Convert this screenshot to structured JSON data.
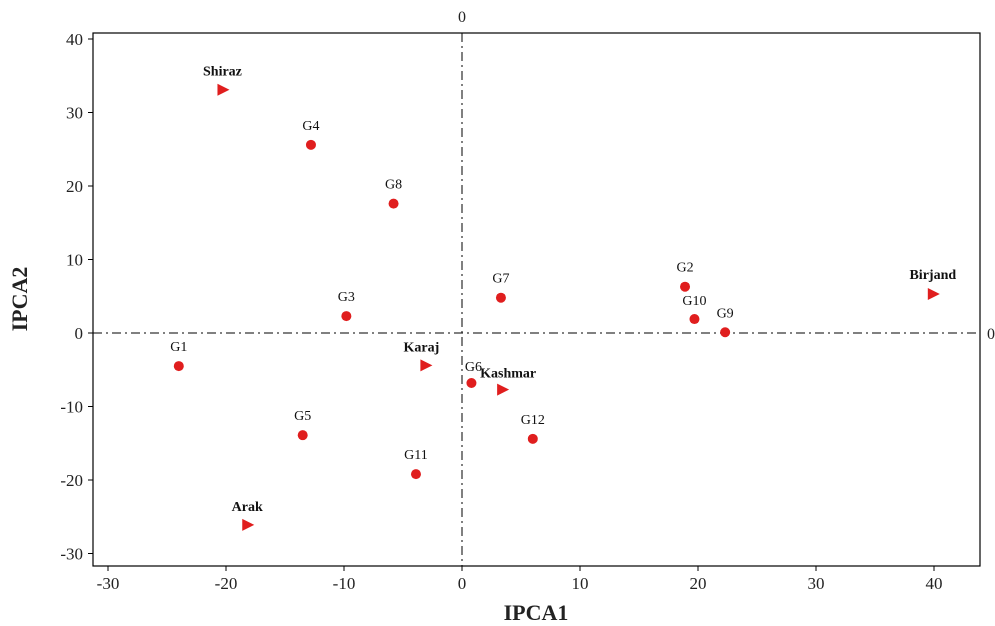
{
  "chart_data": {
    "type": "scatter",
    "title": "",
    "xlabel": "IPCA1",
    "ylabel": "IPCA2",
    "xlim": [
      -31,
      44
    ],
    "ylim": [
      -32,
      41
    ],
    "xticks": [
      -30,
      -20,
      -10,
      0,
      10,
      20,
      30,
      40
    ],
    "yticks": [
      -30,
      -20,
      -10,
      0,
      10,
      20,
      30,
      40
    ],
    "x_tick_labels": [
      "-30",
      "-20",
      "-10",
      "0",
      "10",
      "20",
      "30",
      "40"
    ],
    "y_tick_labels": [
      "-30",
      "-20",
      "-10",
      "0",
      "10",
      "20",
      "30",
      "40"
    ],
    "reference_line_labels": {
      "vertical": "0",
      "horizontal": "0"
    },
    "grid": false,
    "colors": {
      "points": "#e01e1e",
      "axes": "#000000"
    },
    "series": [
      {
        "marker": "circle",
        "points": [
          {
            "label": "G1",
            "x": -24.0,
            "y": -4.5
          },
          {
            "label": "G2",
            "x": 18.9,
            "y": 6.3
          },
          {
            "label": "G3",
            "x": -9.8,
            "y": 2.3
          },
          {
            "label": "G4",
            "x": -12.8,
            "y": 25.6
          },
          {
            "label": "G5",
            "x": -13.5,
            "y": -13.9
          },
          {
            "label": "G6",
            "x": 0.8,
            "y": -6.8
          },
          {
            "label": "G7",
            "x": 3.3,
            "y": 4.8
          },
          {
            "label": "G8",
            "x": -5.8,
            "y": 17.6
          },
          {
            "label": "G9",
            "x": 22.3,
            "y": 0.1
          },
          {
            "label": "G10",
            "x": 19.7,
            "y": 1.9
          },
          {
            "label": "G11",
            "x": -3.9,
            "y": -19.2
          },
          {
            "label": "G12",
            "x": 6.0,
            "y": -14.4
          }
        ]
      },
      {
        "marker": "triangle-right",
        "points": [
          {
            "label": "Shiraz",
            "x": -20.3,
            "y": 33.1
          },
          {
            "label": "Karaj",
            "x": -3.1,
            "y": -4.4
          },
          {
            "label": "Kashmar",
            "x": 3.4,
            "y": -7.7
          },
          {
            "label": "Birjand",
            "x": 39.9,
            "y": 5.3
          },
          {
            "label": "Arak",
            "x": -18.2,
            "y": -26.1
          }
        ]
      }
    ]
  }
}
